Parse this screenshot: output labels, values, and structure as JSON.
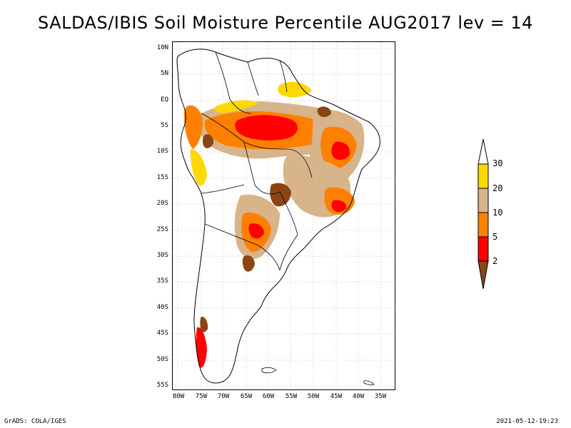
{
  "title": "SALDAS/IBIS Soil Moisture Percentile AUG2017 lev = 14",
  "footer": {
    "left": "GrADS: COLA/IGES",
    "right": "2021-05-12-19:23"
  },
  "axes": {
    "lat_labels": [
      "10N",
      "5N",
      "EQ",
      "5S",
      "10S",
      "15S",
      "20S",
      "25S",
      "30S",
      "35S",
      "40S",
      "45S",
      "50S",
      "55S"
    ],
    "lon_labels": [
      "80W",
      "75W",
      "70W",
      "65W",
      "60W",
      "55W",
      "50W",
      "45W",
      "40W",
      "35W"
    ]
  },
  "legend": {
    "labels": [
      "30",
      "20",
      "10",
      "5",
      "2"
    ],
    "colors": [
      "#ffd800",
      "#d7b48a",
      "#ff8000",
      "#ff0000",
      "#8b4513"
    ]
  },
  "colors": {
    "coast": "#000000",
    "grid": "#aaaaaa"
  }
}
